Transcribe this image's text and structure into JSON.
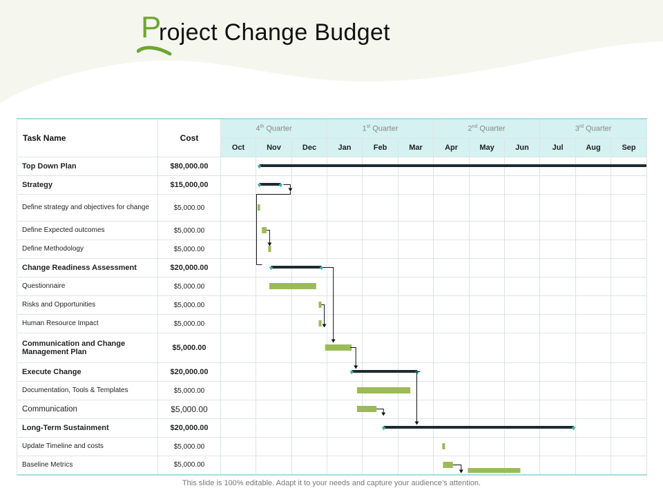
{
  "title": {
    "initial": "P",
    "rest": "roject Change Budget"
  },
  "columns": {
    "task": "Task Name",
    "cost": "Cost"
  },
  "quarters": [
    {
      "num": "4",
      "sup": "th",
      "label": "Quarter"
    },
    {
      "num": "1",
      "sup": "st",
      "label": "Quarter"
    },
    {
      "num": "2",
      "sup": "nd",
      "label": "Quarter"
    },
    {
      "num": "3",
      "sup": "rd",
      "label": "Quarter"
    }
  ],
  "months": [
    "Oct",
    "Nov",
    "Dec",
    "Jan",
    "Feb",
    "Mar",
    "Apr",
    "May",
    "Jun",
    "Jul",
    "Aug",
    "Sep"
  ],
  "rows": [
    {
      "task": "Top Down Plan",
      "cost": "$80,000.00",
      "bold": true,
      "kind": "summary",
      "start": 1.1,
      "end": 12.0
    },
    {
      "task": "Strategy",
      "cost": "$15,000,00",
      "bold": true,
      "kind": "summary",
      "start": 1.1,
      "end": 1.7
    },
    {
      "task": "Define strategy and objectives for change",
      "cost": "$5,000.00",
      "bold": false,
      "kind": "task",
      "start": 1.05,
      "end": 1.12
    },
    {
      "task": "Define Expected outcomes",
      "cost": "$5,000.00",
      "bold": false,
      "kind": "task",
      "start": 1.17,
      "end": 1.3
    },
    {
      "task": "Define Methodology",
      "cost": "$5,000.00",
      "bold": false,
      "kind": "task",
      "start": 1.35,
      "end": 1.43
    },
    {
      "task": "Change Readiness Assessment",
      "cost": "$20,000.00",
      "bold": true,
      "kind": "summary",
      "start": 1.43,
      "end": 2.85
    },
    {
      "task": "Questionnaire",
      "cost": "$5,000.00",
      "bold": false,
      "kind": "task",
      "start": 1.38,
      "end": 2.7
    },
    {
      "task": "Risks and Opportunities",
      "cost": "$5,000.00",
      "bold": false,
      "kind": "task",
      "start": 2.77,
      "end": 2.85
    },
    {
      "task": "Human Resource Impact",
      "cost": "$5,000.00",
      "bold": false,
      "kind": "task",
      "start": 2.77,
      "end": 2.85
    },
    {
      "task": "Communication and Change Management Plan",
      "cost": "$5,000.00",
      "bold": true,
      "kind": "task",
      "start": 2.95,
      "end": 3.7
    },
    {
      "task": "Execute Change",
      "cost": "$20,000.00",
      "bold": true,
      "kind": "summary",
      "start": 3.7,
      "end": 5.55
    },
    {
      "task": "Documentation, Tools & Templates",
      "cost": "$5,000.00",
      "bold": false,
      "kind": "task",
      "start": 3.85,
      "end": 5.35
    },
    {
      "task": "Communication",
      "cost": "$5,000.00",
      "bold": false,
      "kind": "task",
      "start": 3.85,
      "end": 4.4
    },
    {
      "task": "Long-Term Sustainment",
      "cost": "$20,000.00",
      "bold": true,
      "kind": "summary",
      "start": 4.6,
      "end": 9.95
    },
    {
      "task": "Update Timeline and costs",
      "cost": "$5,000.00",
      "bold": false,
      "kind": "task",
      "start": 6.25,
      "end": 6.33
    },
    {
      "task": "Baseline Metrics",
      "cost": "$5,000.00",
      "bold": false,
      "kind": "task",
      "start": 6.27,
      "end": 6.55
    }
  ],
  "extra_bar": {
    "row": 15,
    "start": 6.97,
    "end": 8.45
  },
  "colors": {
    "task_bar": "#9bbb59",
    "summary_bar": "#1e2a30",
    "milestone": "#2bb5b5",
    "header_bg": "#d5f1f1",
    "accent": "#6ea535"
  },
  "footer": "This slide is 100% editable. Adapt it to your needs and capture your audience’s attention."
}
